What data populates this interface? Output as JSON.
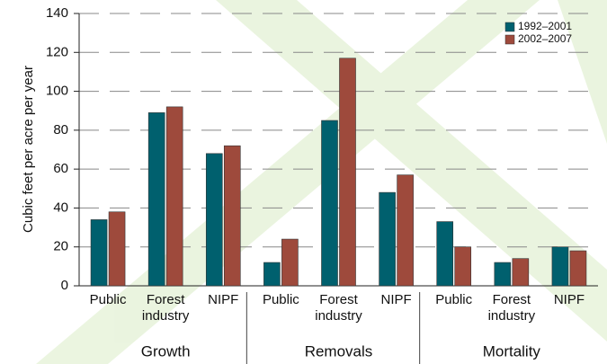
{
  "chart_data": {
    "type": "bar",
    "y_label": "Cubic feet per acre per year",
    "categories": [
      "Public",
      "Forest industry",
      "NIPF",
      "Public",
      "Forest industry",
      "NIPF",
      "Public",
      "Forest industry",
      "NIPF"
    ],
    "groups": [
      "Growth",
      "Removals",
      "Mortality"
    ],
    "series": [
      {
        "name": "1992–2001",
        "color": "#00606e",
        "values": [
          34,
          89,
          68,
          12,
          85,
          48,
          33,
          12,
          20
        ]
      },
      {
        "name": "2002–2007",
        "color": "#9e4a3c",
        "values": [
          38,
          92,
          72,
          24,
          117,
          57,
          20,
          14,
          18
        ]
      }
    ],
    "ylim": [
      0,
      140
    ],
    "yticks": [
      0,
      20,
      40,
      60,
      80,
      100,
      120,
      140
    ],
    "grid": true,
    "legend": "top-right"
  }
}
